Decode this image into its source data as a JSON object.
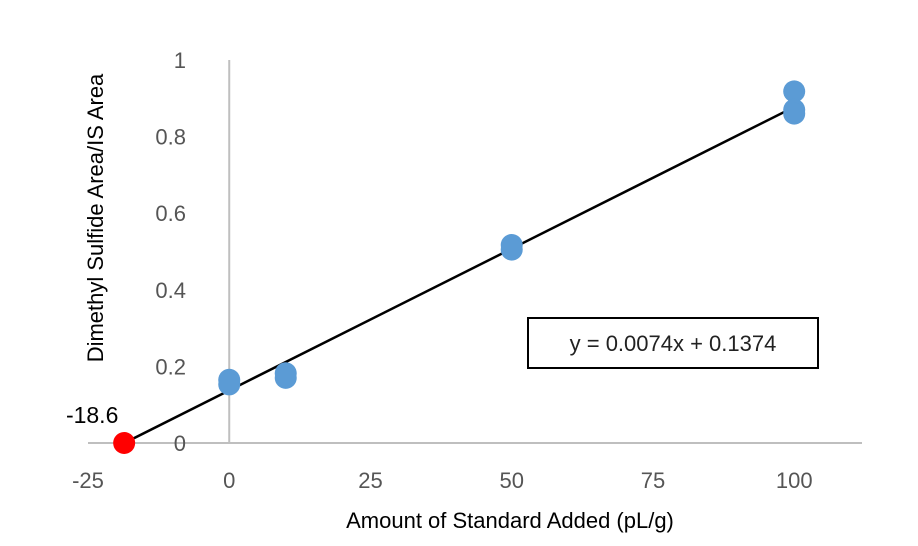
{
  "chart_data": {
    "type": "scatter",
    "title": "",
    "xlabel": "Amount of Standard Added (pL/g)",
    "ylabel": "Dimethyl Sulfide Area/IS Area",
    "xlim": [
      -25,
      112
    ],
    "ylim": [
      0,
      1
    ],
    "x_ticks": [
      -25,
      0,
      25,
      50,
      75,
      100
    ],
    "x_tick_labels": [
      "-25",
      "0",
      "25",
      "50",
      "75",
      "100"
    ],
    "y_ticks": [
      0,
      0.2,
      0.4,
      0.6,
      0.8,
      1
    ],
    "y_tick_labels": [
      "0",
      "0.2",
      "0.4",
      "0.6",
      "0.8",
      "1"
    ],
    "grid": false,
    "series": [
      {
        "name": "Measurements",
        "color": "#5b9bd5",
        "points": [
          {
            "x": 0,
            "y": 0.165
          },
          {
            "x": 0,
            "y": 0.153
          },
          {
            "x": 10,
            "y": 0.182
          },
          {
            "x": 10,
            "y": 0.17
          },
          {
            "x": 50,
            "y": 0.517
          },
          {
            "x": 50,
            "y": 0.505
          },
          {
            "x": 100,
            "y": 0.918
          },
          {
            "x": 100,
            "y": 0.87
          },
          {
            "x": 100,
            "y": 0.86
          }
        ]
      }
    ],
    "trendline": {
      "slope": 0.0074,
      "intercept": 0.1374,
      "x_range": [
        -18.6,
        100
      ],
      "color": "#000000",
      "equation_label": "y = 0.0074x + 0.1374"
    },
    "x_intercept": {
      "x": -18.6,
      "y": 0,
      "label": "-18.6",
      "color": "#ff0000"
    }
  }
}
